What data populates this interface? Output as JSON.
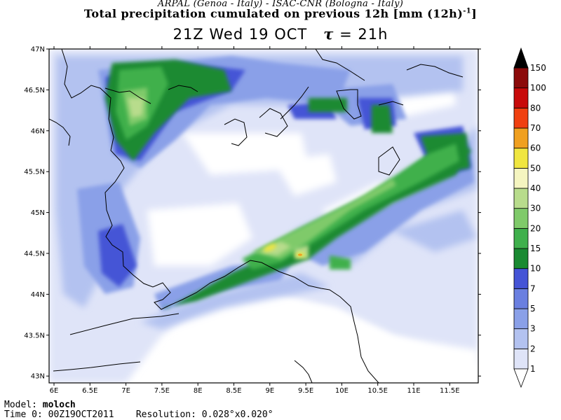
{
  "header": {
    "institutions": "ARPAL (Genoa - Italy)  -  ISAC-CNR (Bologna - Italy)",
    "title": "Total precipitation cumulated on previous 12h [mm (12h)",
    "title_sup": "-1",
    "title_close": "]",
    "valid_time": "21Z Wed 19 OCT",
    "tau_symbol": "τ",
    "tau_value": "= 21h"
  },
  "map": {
    "lat_labels": [
      "47N",
      "46.5N",
      "46N",
      "45.5N",
      "45N",
      "44.5N",
      "44N",
      "43.5N",
      "43N"
    ],
    "lon_labels": [
      "6E",
      "6.5E",
      "7E",
      "7.5E",
      "8E",
      "8.5E",
      "9E",
      "9.5E",
      "10E",
      "10.5E",
      "11E",
      "11.5E"
    ]
  },
  "colorbar": {
    "levels": [
      "1",
      "2",
      "3",
      "5",
      "7",
      "10",
      "15",
      "20",
      "30",
      "40",
      "50",
      "60",
      "70",
      "80",
      "100",
      "150"
    ],
    "colors": [
      "#ffffff",
      "#dfe4f8",
      "#b3c2f0",
      "#8aa0e8",
      "#6a7fe0",
      "#4554d6",
      "#1a8a32",
      "#3fb04c",
      "#7fca6a",
      "#b8dc8c",
      "#f5f5c0",
      "#f0e640",
      "#f0a020",
      "#f04010",
      "#c80a0a",
      "#8c0a0a",
      "#000000"
    ]
  },
  "footer": {
    "model_label": "Model:",
    "model_value": "moloch",
    "time_label": "Time 0:",
    "time_value": "00Z19OCT2011",
    "resolution_label": "Resolution:",
    "resolution_value": "0.028°x0.020°"
  }
}
